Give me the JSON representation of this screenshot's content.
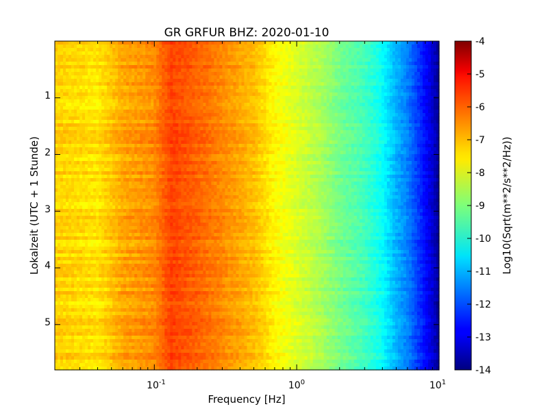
{
  "chart_data": {
    "type": "heatmap",
    "title": "GR GRFUR BHZ: 2020-01-10",
    "xlabel": "Frequency [Hz]",
    "ylabel": "Lokalzeit (UTC + 1 Stunde)",
    "x_scale": "log",
    "x_range_hz": [
      0.02,
      10
    ],
    "x_ticks": [
      {
        "value": 0.1,
        "base": "10",
        "exp": "-1"
      },
      {
        "value": 1,
        "base": "10",
        "exp": "0"
      },
      {
        "value": 10,
        "base": "10",
        "exp": "1"
      }
    ],
    "y_range": [
      0,
      5.8
    ],
    "y_inverted": true,
    "y_ticks": [
      "1",
      "2",
      "3",
      "4",
      "5"
    ],
    "colorbar": {
      "label": "Log10(Sqrt(m**2/s**2/Hz))",
      "range": [
        -14,
        -4
      ],
      "ticks": [
        "-4",
        "-5",
        "-6",
        "-7",
        "-8",
        "-9",
        "-10",
        "-11",
        "-12",
        "-13",
        "-14"
      ],
      "colormap": "jet"
    },
    "spectrum_profile": [
      {
        "freq_hz": 0.02,
        "value": -7.3
      },
      {
        "freq_hz": 0.04,
        "value": -7.5
      },
      {
        "freq_hz": 0.06,
        "value": -6.9
      },
      {
        "freq_hz": 0.1,
        "value": -6.6
      },
      {
        "freq_hz": 0.13,
        "value": -5.9
      },
      {
        "freq_hz": 0.2,
        "value": -6.2
      },
      {
        "freq_hz": 0.3,
        "value": -6.6
      },
      {
        "freq_hz": 0.5,
        "value": -7.1
      },
      {
        "freq_hz": 0.7,
        "value": -7.7
      },
      {
        "freq_hz": 1.0,
        "value": -8.1
      },
      {
        "freq_hz": 1.5,
        "value": -8.6
      },
      {
        "freq_hz": 2.0,
        "value": -9.1
      },
      {
        "freq_hz": 3.0,
        "value": -9.6
      },
      {
        "freq_hz": 4.0,
        "value": -10.2
      },
      {
        "freq_hz": 5.0,
        "value": -11.0
      },
      {
        "freq_hz": 6.0,
        "value": -11.5
      },
      {
        "freq_hz": 7.5,
        "value": -12.4
      },
      {
        "freq_hz": 9.0,
        "value": -13.2
      },
      {
        "freq_hz": 10.0,
        "value": -13.8
      }
    ]
  }
}
